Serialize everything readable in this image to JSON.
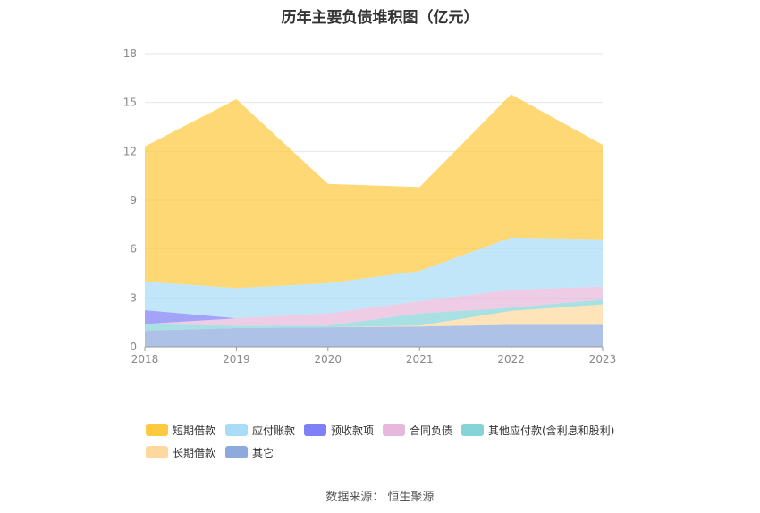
{
  "title": "历年主要负债堆积图（亿元）",
  "source": "数据来源：  恒生聚源",
  "chart_data": {
    "type": "area",
    "stacked": true,
    "categories": [
      "2018",
      "2019",
      "2020",
      "2021",
      "2022",
      "2023"
    ],
    "y_ticks": [
      "0",
      "3",
      "6",
      "9",
      "12",
      "15",
      "18"
    ],
    "ylim": [
      0,
      18
    ],
    "grid": true,
    "legend_position": "bottom",
    "series": [
      {
        "name": "其它",
        "color": "#8eaadc",
        "values": [
          1.0,
          1.15,
          1.2,
          1.25,
          1.35,
          1.35
        ]
      },
      {
        "name": "长期借款",
        "color": "#ffd89e",
        "values": [
          0.0,
          0.0,
          0.0,
          0.05,
          0.85,
          1.25
        ]
      },
      {
        "name": "其他应付款(含利息和股利)",
        "color": "#86d4d8",
        "values": [
          0.4,
          0.15,
          0.1,
          0.75,
          0.2,
          0.3
        ]
      },
      {
        "name": "合同负债",
        "color": "#e8b8dc",
        "values": [
          0.0,
          0.45,
          0.75,
          0.75,
          1.1,
          0.8
        ]
      },
      {
        "name": "预收款项",
        "color": "#7f80f5",
        "values": [
          0.85,
          0.0,
          0.0,
          0.0,
          0.0,
          0.0
        ]
      },
      {
        "name": "应付账款",
        "color": "#a9dcf7",
        "values": [
          1.75,
          1.85,
          1.85,
          1.85,
          3.2,
          2.9
        ]
      },
      {
        "name": "短期借款",
        "color": "#fcc940",
        "values": [
          8.3,
          11.6,
          6.1,
          5.15,
          8.8,
          5.8
        ]
      }
    ],
    "legend_order": [
      "短期借款",
      "应付账款",
      "预收款项",
      "合同负债",
      "其他应付款(含利息和股利)",
      "长期借款",
      "其它"
    ]
  }
}
